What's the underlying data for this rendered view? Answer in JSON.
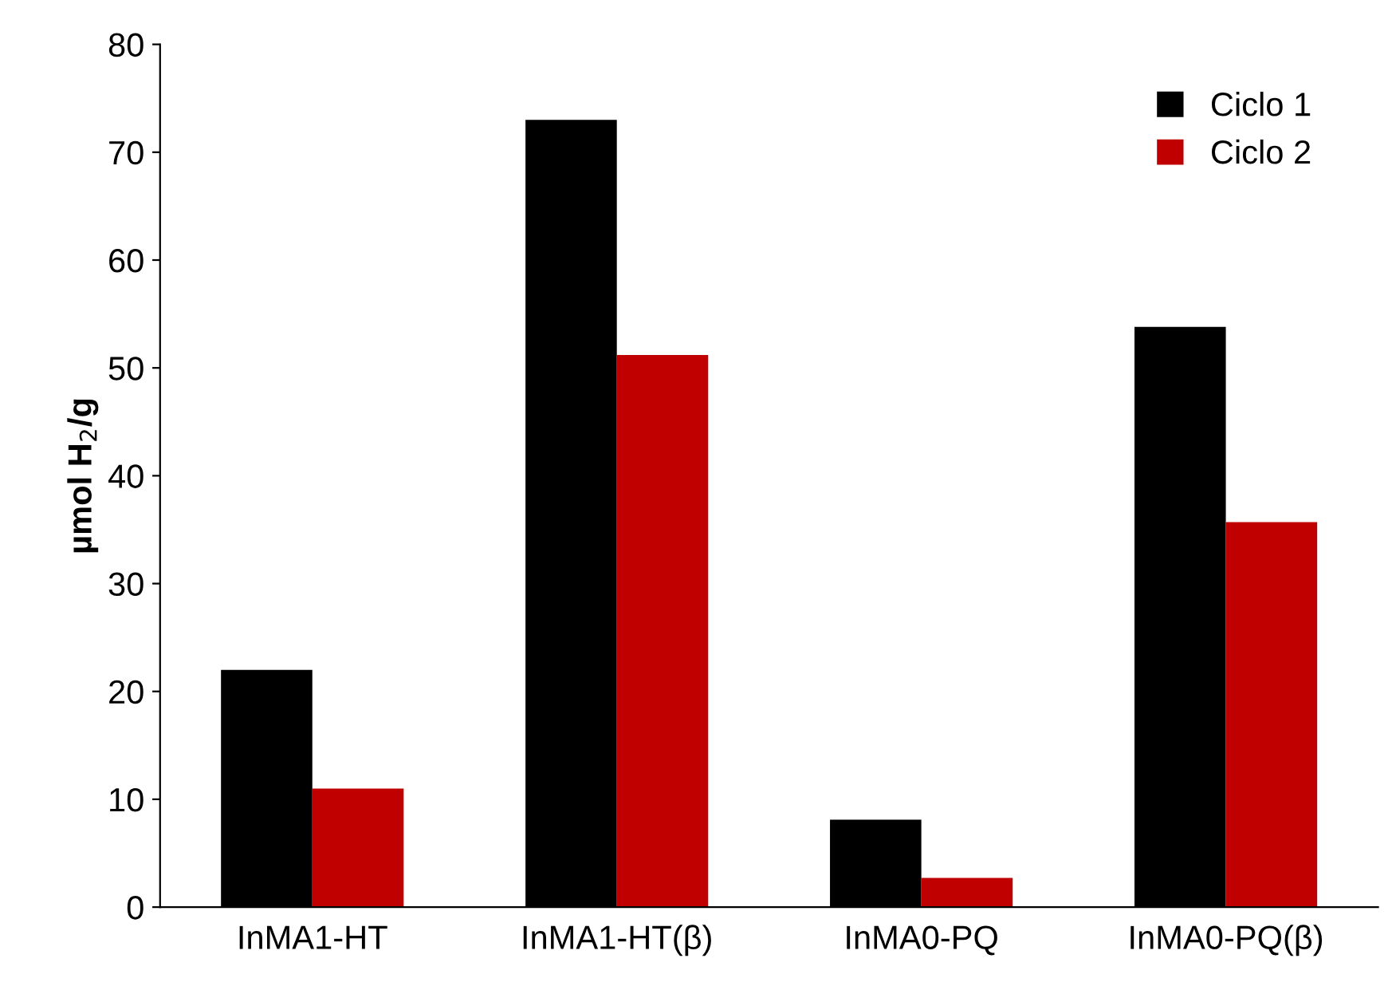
{
  "chart_data": {
    "type": "bar",
    "ylabel": "µmol H$_{2}$/g",
    "categories": [
      "InMA1-HT",
      "InMA1-HT(β)",
      "InMA0-PQ",
      "InMA0-PQ(β)"
    ],
    "series": [
      {
        "name": "Ciclo 1",
        "color": "#000000",
        "values": [
          22,
          73,
          8.1,
          53.8
        ]
      },
      {
        "name": "Ciclo 2",
        "color": "#c00000",
        "values": [
          11,
          51.2,
          2.7,
          35.7
        ]
      }
    ],
    "ylim": [
      0,
      80
    ],
    "yticks": [
      0,
      10,
      20,
      30,
      40,
      50,
      60,
      70,
      80
    ],
    "grid": false,
    "legend": "top right"
  }
}
